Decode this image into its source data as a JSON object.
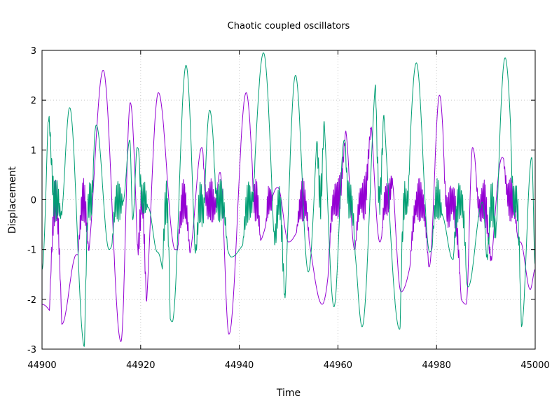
{
  "chart_data": {
    "type": "line",
    "title": "Chaotic coupled oscillators",
    "xlabel": "Time",
    "ylabel": "Displacement",
    "xlim": [
      44900,
      45000
    ],
    "ylim": [
      -3,
      3
    ],
    "xticks": [
      44900,
      44920,
      44940,
      44960,
      44980,
      45000
    ],
    "yticks": [
      -3,
      -2,
      -1,
      0,
      1,
      2,
      3
    ],
    "grid": true,
    "legend": "none",
    "series_colors": [
      "#9400d3",
      "#009e73"
    ],
    "series": [
      {
        "color": "#9400d3",
        "peaks": [
          [
            44900.0,
            -2.1
          ],
          [
            44904.0,
            -2.5
          ],
          [
            44907.0,
            -1.1
          ],
          [
            44908.9,
            -1.3
          ],
          [
            44912.4,
            2.6
          ],
          [
            44916.0,
            -2.85
          ],
          [
            44917.9,
            1.95
          ],
          [
            44920.4,
            -2.8
          ],
          [
            44923.6,
            2.15
          ],
          [
            44927.0,
            -1.0
          ],
          [
            44929.8,
            -1.1
          ],
          [
            44932.4,
            1.05
          ],
          [
            44934.2,
            -1.15
          ],
          [
            44936.1,
            0.55
          ],
          [
            44937.9,
            -2.7
          ],
          [
            44941.4,
            2.15
          ],
          [
            44943.9,
            -0.85
          ],
          [
            44947.8,
            0.25
          ],
          [
            44950.0,
            -0.85
          ],
          [
            44953.0,
            -0.5
          ],
          [
            44956.8,
            -2.1
          ],
          [
            44961.4,
            1.45
          ],
          [
            44963.4,
            -1.0
          ],
          [
            44966.2,
            1.9
          ],
          [
            44968.5,
            -0.85
          ],
          [
            44970.6,
            0.7
          ],
          [
            44972.8,
            -1.85
          ],
          [
            44977.0,
            -0.55
          ],
          [
            44978.5,
            -1.35
          ],
          [
            44980.6,
            2.1
          ],
          [
            44983.0,
            -1.7
          ],
          [
            44986.0,
            -2.1
          ],
          [
            44987.3,
            1.05
          ],
          [
            44990.0,
            -2.05
          ],
          [
            44993.3,
            0.85
          ],
          [
            44997.0,
            -0.85
          ],
          [
            44999.0,
            -1.8
          ],
          [
            45000.0,
            -1.4
          ]
        ],
        "chatter_windows": [
          [
            44901.5,
            44904.0
          ],
          [
            44907.3,
            44909.5
          ],
          [
            44919.3,
            44921.2
          ],
          [
            44927.5,
            44930.0
          ],
          [
            44932.6,
            44935.8
          ],
          [
            44942.6,
            44944.3
          ],
          [
            44945.4,
            44946.8
          ],
          [
            44951.6,
            44954.2
          ],
          [
            44958.0,
            44961.6
          ],
          [
            44963.5,
            44966.8
          ],
          [
            44968.9,
            44971.2
          ],
          [
            44974.6,
            44978.4
          ],
          [
            44981.3,
            44985.0
          ],
          [
            44987.9,
            44991.2
          ],
          [
            44993.6,
            44996.4
          ]
        ]
      },
      {
        "color": "#009e73",
        "peaks": [
          [
            44900.0,
            -1.4
          ],
          [
            44901.8,
            2.5
          ],
          [
            44903.7,
            -0.45
          ],
          [
            44905.6,
            1.85
          ],
          [
            44908.6,
            -2.95
          ],
          [
            44911.0,
            1.5
          ],
          [
            44913.6,
            -1.0
          ],
          [
            44916.4,
            -0.05
          ],
          [
            44917.8,
            1.2
          ],
          [
            44918.4,
            -0.4
          ],
          [
            44919.3,
            1.05
          ],
          [
            44921.5,
            -0.15
          ],
          [
            44923.4,
            -1.05
          ],
          [
            44926.4,
            -2.45
          ],
          [
            44929.2,
            2.7
          ],
          [
            44931.8,
            -2.0
          ],
          [
            44934.0,
            1.8
          ],
          [
            44936.1,
            -0.55
          ],
          [
            44938.4,
            -1.15
          ],
          [
            44941.7,
            -0.85
          ],
          [
            44944.9,
            2.95
          ],
          [
            44948.5,
            -2.95
          ],
          [
            44951.4,
            2.5
          ],
          [
            44954.0,
            -1.45
          ],
          [
            44956.6,
            2.15
          ],
          [
            44959.2,
            -2.15
          ],
          [
            44961.3,
            1.2
          ],
          [
            44963.1,
            -0.9
          ],
          [
            44964.9,
            -2.55
          ],
          [
            44968.1,
            2.65
          ],
          [
            44972.5,
            -2.6
          ],
          [
            44975.9,
            2.75
          ],
          [
            44978.6,
            -1.05
          ],
          [
            44981.0,
            -0.3
          ],
          [
            44983.3,
            -1.2
          ],
          [
            44984.8,
            -0.55
          ],
          [
            44986.4,
            -1.75
          ],
          [
            44989.3,
            -0.05
          ],
          [
            44991.0,
            -2.45
          ],
          [
            44993.9,
            2.85
          ],
          [
            44997.2,
            -2.55
          ],
          [
            44999.3,
            0.85
          ],
          [
            45000.0,
            -1.3
          ]
        ],
        "chatter_windows": [
          [
            44901.2,
            44904.1
          ],
          [
            44908.6,
            44910.6
          ],
          [
            44914.2,
            44916.5
          ],
          [
            44919.6,
            44921.4
          ],
          [
            44924.4,
            44926.0
          ],
          [
            44931.0,
            44933.2
          ],
          [
            44934.8,
            44937.6
          ],
          [
            44940.7,
            44943.2
          ],
          [
            44946.9,
            44949.3
          ],
          [
            44955.7,
            44957.2
          ],
          [
            44961.5,
            44963.5
          ],
          [
            44967.6,
            44969.3
          ],
          [
            44972.6,
            44974.6
          ],
          [
            44979.1,
            44981.2
          ],
          [
            44983.4,
            44986.1
          ],
          [
            44990.1,
            44992.3
          ],
          [
            44995.0,
            44997.2
          ]
        ]
      }
    ]
  }
}
